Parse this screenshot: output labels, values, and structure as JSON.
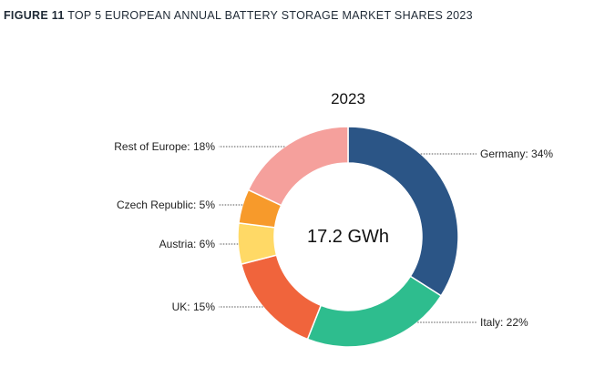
{
  "figure": {
    "number": "FIGURE 11",
    "title": "TOP 5 EUROPEAN ANNUAL BATTERY STORAGE MARKET SHARES 2023"
  },
  "chart_data": {
    "type": "pie",
    "variant": "donut",
    "title": "2023",
    "center_label": "17.2 GWh",
    "slices": [
      {
        "name": "Germany",
        "label": "Germany: 34%",
        "value": 34,
        "color": "#2b5586"
      },
      {
        "name": "Italy",
        "label": "Italy: 22%",
        "value": 22,
        "color": "#2ebd8e"
      },
      {
        "name": "UK",
        "label": "UK: 15%",
        "value": 15,
        "color": "#f0643c"
      },
      {
        "name": "Austria",
        "label": "Austria: 6%",
        "value": 6,
        "color": "#ffd966"
      },
      {
        "name": "Czech Republic",
        "label": "Czech Republic: 5%",
        "value": 5,
        "color": "#f79a2b"
      },
      {
        "name": "Rest of Europe",
        "label": "Rest of Europe: 18%",
        "value": 18,
        "color": "#f5a09c"
      }
    ]
  }
}
